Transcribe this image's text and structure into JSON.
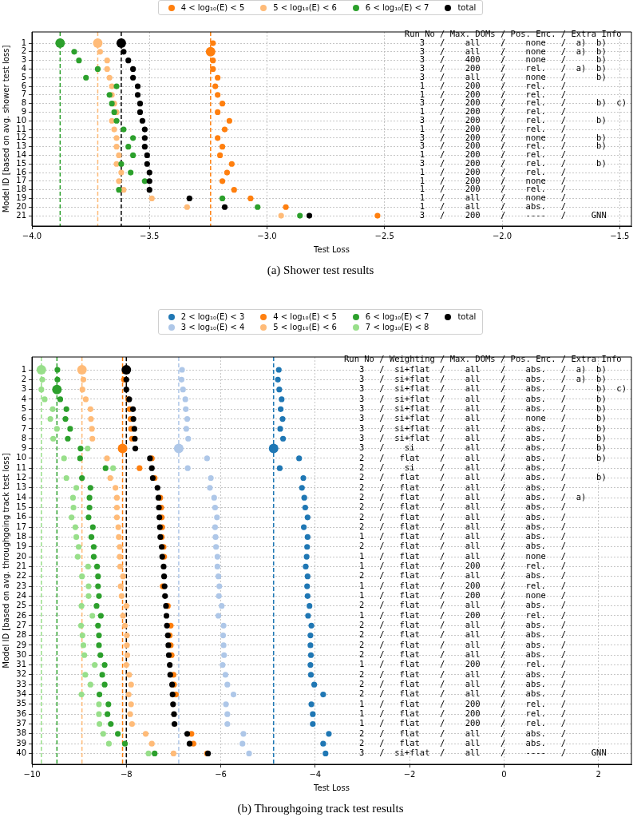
{
  "chart_data": [
    {
      "type": "bubble",
      "title": "(a) Shower test results",
      "xlabel": "Test Loss",
      "ylabel": "Model ID [based on avg. shower test loss]",
      "series": [
        {
          "name": "4 < log₁₀(E) < 5",
          "color": "#ff7f0e",
          "sizes": [
            0.36,
            1,
            0.36,
            0.36,
            0.36,
            0.36,
            0.36,
            0.36,
            0.36,
            0.36,
            0.36,
            0.36,
            0.36,
            0.36,
            0.36,
            0.36,
            0.36,
            0.36,
            0.36,
            0.36,
            0.36
          ],
          "x": [
            -3.23,
            -3.24,
            -3.23,
            -3.23,
            -3.21,
            -3.22,
            -3.21,
            -3.19,
            -3.21,
            -3.16,
            -3.18,
            -3.21,
            -3.19,
            -3.2,
            -3.15,
            -3.17,
            -3.19,
            -3.14,
            -3.07,
            -2.92,
            -2.53
          ],
          "values": [
            1,
            2,
            3,
            4,
            5,
            6,
            7,
            8,
            9,
            10,
            11,
            12,
            13,
            14,
            15,
            16,
            17,
            18,
            19,
            20,
            21
          ]
        },
        {
          "name": "5 < log₁₀(E) < 6",
          "color": "#ffbb78",
          "sizes": [
            1,
            0.36,
            0.36,
            0.36,
            0.36,
            0.36,
            0.36,
            0.36,
            0.36,
            0.36,
            0.36,
            0.36,
            0.36,
            0.36,
            0.36,
            0.36,
            0.36,
            0.36,
            0.36,
            0.36,
            0.36
          ],
          "x": [
            -3.72,
            -3.71,
            -3.68,
            -3.68,
            -3.67,
            -3.66,
            -3.66,
            -3.65,
            -3.64,
            -3.66,
            -3.65,
            -3.64,
            -3.64,
            -3.63,
            -3.64,
            -3.62,
            -3.63,
            -3.61,
            -3.49,
            -3.34,
            -2.94
          ],
          "values": [
            1,
            2,
            3,
            4,
            5,
            6,
            7,
            8,
            9,
            10,
            11,
            12,
            13,
            14,
            15,
            16,
            17,
            18,
            19,
            20,
            21
          ]
        },
        {
          "name": "6 < log₁₀(E) < 7",
          "color": "#2ca02c",
          "sizes": [
            1,
            0.36,
            0.36,
            0.36,
            0.36,
            0.36,
            0.36,
            0.36,
            0.36,
            0.36,
            0.36,
            0.36,
            0.36,
            0.36,
            0.36,
            0.36,
            0.36,
            0.36,
            0.36,
            0.36,
            0.36
          ],
          "x": [
            -3.88,
            -3.82,
            -3.8,
            -3.72,
            -3.77,
            -3.64,
            -3.67,
            -3.66,
            -3.65,
            -3.64,
            -3.61,
            -3.57,
            -3.59,
            -3.57,
            -3.62,
            -3.58,
            -3.52,
            -3.63,
            -3.19,
            -3.04,
            -2.86
          ],
          "values": [
            1,
            2,
            3,
            4,
            5,
            6,
            7,
            8,
            9,
            10,
            11,
            12,
            13,
            14,
            15,
            16,
            17,
            18,
            19,
            20,
            21
          ]
        },
        {
          "name": "total",
          "color": "#000000",
          "sizes": [
            1,
            0.36,
            0.36,
            0.36,
            0.36,
            0.36,
            0.36,
            0.36,
            0.36,
            0.36,
            0.36,
            0.36,
            0.36,
            0.36,
            0.36,
            0.36,
            0.36,
            0.36,
            0.36,
            0.36,
            0.36
          ],
          "x": [
            -3.62,
            -3.61,
            -3.59,
            -3.57,
            -3.57,
            -3.55,
            -3.55,
            -3.54,
            -3.54,
            -3.53,
            -3.52,
            -3.52,
            -3.52,
            -3.51,
            -3.51,
            -3.5,
            -3.5,
            -3.5,
            -3.33,
            -3.18,
            -2.82
          ],
          "values": [
            1,
            2,
            3,
            4,
            5,
            6,
            7,
            8,
            9,
            10,
            11,
            12,
            13,
            14,
            15,
            16,
            17,
            18,
            19,
            20,
            21
          ]
        }
      ],
      "xlim": [
        -4.0,
        -1.45
      ],
      "xticks": [
        {
          "value": -4.0,
          "label": "−4.0"
        },
        {
          "value": -3.5,
          "label": "−3.5"
        },
        {
          "value": -3.0,
          "label": "−3.0"
        },
        {
          "value": -2.5,
          "label": "−2.5"
        },
        {
          "value": -2.0,
          "label": "−2.0"
        },
        {
          "value": -1.5,
          "label": "−1.5"
        }
      ],
      "ylim": [
        22.2,
        -0.3
      ],
      "yticks": [
        1,
        2,
        3,
        4,
        5,
        6,
        7,
        8,
        9,
        10,
        11,
        12,
        13,
        14,
        15,
        16,
        17,
        18,
        19,
        20,
        21
      ],
      "grid": true,
      "legend": "top",
      "marker": "circle",
      "ref_lines": [
        {
          "axis": "x",
          "value": -3.24,
          "color": "#ff7f0e",
          "line_style": "dashed"
        },
        {
          "axis": "x",
          "value": -3.72,
          "color": "#ffbb78",
          "line_style": "dashed"
        },
        {
          "axis": "x",
          "value": -3.88,
          "color": "#2ca02c",
          "line_style": "dashed"
        },
        {
          "axis": "x",
          "value": -3.62,
          "color": "#000000",
          "line_style": "dashed"
        }
      ],
      "annotations": [
        "Run No / Max. DOMs / Pos. Enc. / Extra Info",
        "   3   /    all    /    none   /  a)  b)",
        "   3   /    all    /    none   /  a)  b)",
        "   3   /    400    /    none   /      b)",
        "   3   /    200    /    rel.   /  a)  b)",
        "   3   /    all    /    none   /      b)",
        "   1   /    200    /    rel.   /",
        "   1   /    200    /    rel.   /",
        "   3   /    200    /    rel.   /      b)  c)",
        "   1   /    200    /    rel.   /",
        "   3   /    200    /    rel.   /      b)",
        "   1   /    200    /    rel.   /",
        "   3   /    200    /    none   /      b)",
        "   3   /    200    /    rel.   /      b)",
        "   1   /    200    /    rel.   /",
        "   3   /    200    /    rel.   /      b)",
        "   1   /    200    /    rel.   /",
        "   1   /    200    /    none   /",
        "   1   /    200    /    rel.   /",
        "   1   /    all    /    none   /",
        "   1   /    all    /    abs.   /",
        "   3   /    200    /    ----   /     GNN"
      ]
    },
    {
      "type": "bubble",
      "title": "(b) Throughgoing track test results",
      "xlabel": "Test Loss",
      "ylabel": "Model ID [based on avg. throughgoing track test loss]",
      "series": [
        {
          "name": "2 < log₁₀(E) < 3",
          "color": "#1f77b4",
          "sizes": [
            0.36,
            0.36,
            0.36,
            0.36,
            0.36,
            0.36,
            0.36,
            0.36,
            1,
            0.36,
            0.36,
            0.36,
            0.36,
            0.36,
            0.36,
            0.36,
            0.36,
            0.36,
            0.36,
            0.36,
            0.36,
            0.36,
            0.36,
            0.36,
            0.36,
            0.36,
            0.36,
            0.36,
            0.36,
            0.36,
            0.36,
            0.36,
            0.36,
            0.36,
            0.36,
            0.36,
            0.36,
            0.36,
            0.36,
            0.36
          ],
          "x": [
            -4.77,
            -4.79,
            -4.76,
            -4.71,
            -4.73,
            -4.69,
            -4.74,
            -4.68,
            -4.88,
            -4.34,
            -4.75,
            -4.25,
            -4.28,
            -4.23,
            -4.21,
            -4.16,
            -4.24,
            -4.16,
            -4.17,
            -4.18,
            -4.2,
            -4.16,
            -4.17,
            -4.16,
            -4.12,
            -4.15,
            -4.08,
            -4.1,
            -4.1,
            -4.09,
            -4.1,
            -4.09,
            -4.02,
            -3.83,
            -4.08,
            -4.05,
            -4.05,
            -3.71,
            -3.83,
            -3.78
          ],
          "values": [
            1,
            2,
            3,
            4,
            5,
            6,
            7,
            8,
            9,
            10,
            11,
            12,
            13,
            14,
            15,
            16,
            17,
            18,
            19,
            20,
            21,
            22,
            23,
            24,
            25,
            26,
            27,
            28,
            29,
            30,
            31,
            32,
            33,
            34,
            35,
            36,
            37,
            38,
            39,
            40
          ]
        },
        {
          "name": "3 < log₁₀(E) < 4",
          "color": "#aec7e8",
          "sizes": [
            0.36,
            0.36,
            0.36,
            0.36,
            0.36,
            0.36,
            0.36,
            0.36,
            1,
            0.36,
            0.36,
            0.36,
            0.36,
            0.36,
            0.36,
            0.36,
            0.36,
            0.36,
            0.36,
            0.36,
            0.36,
            0.36,
            0.36,
            0.36,
            0.36,
            0.36,
            0.36,
            0.36,
            0.36,
            0.36,
            0.36,
            0.36,
            0.36,
            0.36,
            0.36,
            0.36,
            0.36,
            0.36,
            0.36,
            0.36
          ],
          "x": [
            -6.82,
            -6.83,
            -6.8,
            -6.75,
            -6.74,
            -6.71,
            -6.73,
            -6.69,
            -6.89,
            -6.29,
            -6.7,
            -6.21,
            -6.23,
            -6.14,
            -6.12,
            -6.08,
            -6.12,
            -6.11,
            -6.1,
            -6.07,
            -6.07,
            -6.05,
            -6.03,
            -6.04,
            -5.98,
            -6.05,
            -5.94,
            -5.95,
            -5.94,
            -5.93,
            -5.96,
            -5.9,
            -5.86,
            -5.73,
            -5.89,
            -5.86,
            -5.86,
            -5.52,
            -5.54,
            -5.4
          ],
          "values": [
            1,
            2,
            3,
            4,
            5,
            6,
            7,
            8,
            9,
            10,
            11,
            12,
            13,
            14,
            15,
            16,
            17,
            18,
            19,
            20,
            21,
            22,
            23,
            24,
            25,
            26,
            27,
            28,
            29,
            30,
            31,
            32,
            33,
            34,
            35,
            36,
            37,
            38,
            39,
            40
          ]
        },
        {
          "name": "4 < log₁₀(E) < 5",
          "color": "#ff7f0e",
          "sizes": [
            0.36,
            0.36,
            0.36,
            0.36,
            0.36,
            0.36,
            1,
            0.36,
            0.36,
            0.36,
            0.36,
            0.36,
            0.36,
            0.36,
            0.36,
            0.36,
            0.36,
            0.36,
            0.36,
            0.36,
            0.36,
            0.36,
            0.36,
            0.36,
            0.36,
            0.36,
            0.36,
            0.36,
            0.36
          ],
          "x": [
            -8.05,
            -7.96,
            -7.93,
            -7.91,
            -7.9,
            -7.88,
            -8.08,
            -7.46,
            -7.72,
            -7.4,
            -7.28,
            -7.26,
            -7.25,
            -7.24,
            -7.25,
            -7.21,
            -7.2,
            -7.23,
            -7.12,
            -7.06,
            -7.08,
            -7.06,
            -7.04,
            -7.0,
            -6.99,
            -6.95,
            -6.62,
            -6.58,
            -6.29
          ],
          "values": [
            2,
            4,
            5,
            6,
            7,
            8,
            9,
            10,
            11,
            12,
            14,
            15,
            16,
            17,
            18,
            19,
            20,
            23,
            25,
            27,
            28,
            29,
            30,
            32,
            33,
            34,
            38,
            39,
            40
          ]
        },
        {
          "name": "5 < log₁₀(E) < 6",
          "color": "#ffbb78",
          "sizes": [
            1,
            0.36,
            0.36,
            0.36,
            0.36,
            0.36,
            0.36,
            0.36,
            0.36,
            0.36,
            0.36,
            0.36,
            0.36,
            0.36,
            0.36,
            0.36,
            0.36,
            0.36,
            0.36,
            0.36,
            0.36,
            0.36,
            0.36,
            0.36,
            0.36,
            0.36,
            0.36,
            0.36,
            0.36,
            0.36,
            0.36,
            0.36,
            0.36,
            0.36,
            0.36,
            0.36,
            0.36,
            0.36
          ],
          "x": [
            -8.94,
            -8.91,
            -8.93,
            -8.86,
            -8.76,
            -8.75,
            -8.73,
            -8.72,
            -8.41,
            -8.34,
            -8.23,
            -8.2,
            -8.2,
            -8.2,
            -8.17,
            -8.16,
            -8.14,
            -8.14,
            -8.13,
            -8.07,
            -8.12,
            -8.1,
            -8.0,
            -8.07,
            -8.03,
            -7.99,
            -7.99,
            -7.98,
            -8.0,
            -7.94,
            -7.9,
            -7.95,
            -7.9,
            -7.92,
            -7.88,
            -7.59,
            -7.46,
            -7.0
          ],
          "values": [
            1,
            2,
            3,
            4,
            5,
            6,
            7,
            8,
            10,
            12,
            13,
            14,
            15,
            16,
            17,
            18,
            19,
            20,
            21,
            22,
            23,
            24,
            25,
            26,
            27,
            28,
            29,
            30,
            31,
            32,
            33,
            34,
            35,
            36,
            37,
            38,
            39,
            40
          ]
        },
        {
          "name": "6 < log₁₀(E) < 7",
          "color": "#2ca02c",
          "sizes": [
            0.36,
            0.36,
            1,
            0.36,
            0.36,
            0.36,
            0.36,
            0.36,
            0.36,
            0.36,
            0.36,
            0.36,
            0.36,
            0.36,
            0.36,
            0.36,
            0.36,
            0.36,
            0.36,
            0.36,
            0.36,
            0.36,
            0.36,
            0.36,
            0.36,
            0.36,
            0.36,
            0.36,
            0.36,
            0.36,
            0.36,
            0.36,
            0.36,
            0.36,
            0.36,
            0.36,
            0.36,
            0.36,
            0.36,
            0.36
          ],
          "x": [
            -9.46,
            -9.46,
            -9.47,
            -9.4,
            -9.27,
            -9.29,
            -9.19,
            -9.24,
            -8.97,
            -8.98,
            -8.44,
            -8.94,
            -8.76,
            -8.78,
            -8.78,
            -8.8,
            -8.71,
            -8.74,
            -8.69,
            -8.69,
            -8.62,
            -8.6,
            -8.6,
            -8.58,
            -8.63,
            -8.54,
            -8.6,
            -8.58,
            -8.58,
            -8.55,
            -8.46,
            -8.51,
            -8.46,
            -8.57,
            -8.38,
            -8.4,
            -8.33,
            -8.18,
            -8.03,
            -7.4
          ],
          "values": [
            1,
            2,
            3,
            4,
            5,
            6,
            7,
            8,
            9,
            10,
            11,
            12,
            13,
            14,
            15,
            16,
            17,
            18,
            19,
            20,
            21,
            22,
            23,
            24,
            25,
            26,
            27,
            28,
            29,
            30,
            31,
            32,
            33,
            34,
            35,
            36,
            37,
            38,
            39,
            40
          ]
        },
        {
          "name": "7 < log₁₀(E) < 8",
          "color": "#98df8a",
          "sizes": [
            1,
            0.36,
            0.36,
            0.36,
            0.36,
            0.36,
            0.36,
            0.36,
            0.36,
            0.36,
            0.36,
            0.36,
            0.36,
            0.36,
            0.36,
            0.36,
            0.36,
            0.36,
            0.36,
            0.36,
            0.36,
            0.36,
            0.36,
            0.36,
            0.36,
            0.36,
            0.36,
            0.36,
            0.36,
            0.36,
            0.36,
            0.36,
            0.36,
            0.36,
            0.36,
            0.36,
            0.36,
            0.36,
            0.36,
            0.36
          ],
          "x": [
            -9.8,
            -9.78,
            -9.8,
            -9.73,
            -9.56,
            -9.61,
            -9.47,
            -9.55,
            -8.82,
            -9.32,
            -8.28,
            -9.27,
            -9.06,
            -9.13,
            -9.12,
            -9.16,
            -9.08,
            -9.06,
            -9.01,
            -9.03,
            -8.81,
            -8.94,
            -8.8,
            -8.8,
            -8.95,
            -8.72,
            -8.96,
            -8.93,
            -8.91,
            -8.89,
            -8.67,
            -8.87,
            -8.76,
            -8.95,
            -8.58,
            -8.58,
            -8.57,
            -8.49,
            -8.37,
            -7.53
          ],
          "values": [
            1,
            2,
            3,
            4,
            5,
            6,
            7,
            8,
            9,
            10,
            11,
            12,
            13,
            14,
            15,
            16,
            17,
            18,
            19,
            20,
            21,
            22,
            23,
            24,
            25,
            26,
            27,
            28,
            29,
            30,
            31,
            32,
            33,
            34,
            35,
            36,
            37,
            38,
            39,
            40
          ]
        },
        {
          "name": "total",
          "color": "#000000",
          "sizes": [
            1,
            0.36,
            0.36,
            0.36,
            0.36,
            0.36,
            0.36,
            0.36,
            0.36,
            0.36,
            0.36,
            0.36,
            0.36,
            0.36,
            0.36,
            0.36,
            0.36,
            0.36,
            0.36,
            0.36,
            0.36,
            0.36,
            0.36,
            0.36,
            0.36,
            0.36,
            0.36,
            0.36,
            0.36,
            0.36,
            0.36,
            0.36,
            0.36,
            0.36,
            0.36,
            0.36,
            0.36,
            0.36,
            0.36,
            0.36
          ],
          "x": [
            -8.0,
            -8.0,
            -8.0,
            -7.94,
            -7.86,
            -7.85,
            -7.83,
            -7.82,
            -7.81,
            -7.5,
            -7.46,
            -7.44,
            -7.34,
            -7.32,
            -7.31,
            -7.3,
            -7.29,
            -7.28,
            -7.25,
            -7.24,
            -7.21,
            -7.2,
            -7.19,
            -7.18,
            -7.16,
            -7.15,
            -7.14,
            -7.12,
            -7.11,
            -7.1,
            -7.08,
            -7.07,
            -7.03,
            -7.02,
            -7.01,
            -6.99,
            -6.98,
            -6.71,
            -6.66,
            -6.27
          ],
          "values": [
            1,
            2,
            3,
            4,
            5,
            6,
            7,
            8,
            9,
            10,
            11,
            12,
            13,
            14,
            15,
            16,
            17,
            18,
            19,
            20,
            21,
            22,
            23,
            24,
            25,
            26,
            27,
            28,
            29,
            30,
            31,
            32,
            33,
            34,
            35,
            36,
            37,
            38,
            39,
            40
          ]
        }
      ],
      "xlim": [
        -10,
        2.7
      ],
      "xticks": [
        {
          "value": -10,
          "label": "−10"
        },
        {
          "value": -8,
          "label": "−8"
        },
        {
          "value": -6,
          "label": "−6"
        },
        {
          "value": -4,
          "label": "−4"
        },
        {
          "value": -2,
          "label": "−2"
        },
        {
          "value": 0,
          "label": "0"
        },
        {
          "value": 2,
          "label": "2"
        }
      ],
      "ylim": [
        41.1,
        -0.3
      ],
      "yticks": [
        1,
        2,
        3,
        4,
        5,
        6,
        7,
        8,
        9,
        10,
        11,
        12,
        13,
        14,
        15,
        16,
        17,
        18,
        19,
        20,
        21,
        22,
        23,
        24,
        25,
        26,
        27,
        28,
        29,
        30,
        31,
        32,
        33,
        34,
        35,
        36,
        37,
        38,
        39,
        40
      ],
      "grid": true,
      "legend": "top",
      "marker": "circle",
      "ref_lines": [
        {
          "axis": "x",
          "value": -4.88,
          "color": "#1f77b4",
          "line_style": "dashed"
        },
        {
          "axis": "x",
          "value": -6.89,
          "color": "#aec7e8",
          "line_style": "dashed"
        },
        {
          "axis": "x",
          "value": -8.08,
          "color": "#ff7f0e",
          "line_style": "dashed"
        },
        {
          "axis": "x",
          "value": -8.94,
          "color": "#ffbb78",
          "line_style": "dashed"
        },
        {
          "axis": "x",
          "value": -9.47,
          "color": "#2ca02c",
          "line_style": "dashed"
        },
        {
          "axis": "x",
          "value": -9.8,
          "color": "#98df8a",
          "line_style": "dashed"
        },
        {
          "axis": "x",
          "value": -8.0,
          "color": "#000000",
          "line_style": "dashed"
        }
      ],
      "annotations": [
        "Run No / Weighting / Max. DOMs / Pos. Enc. / Extra Info",
        "   3   /  si+flat  /    all    /    abs.   /  a)  b)",
        "   3   /  si+flat  /    all    /    abs.   /  a)  b)",
        "   3   /  si+flat  /    all    /    abs.   /      b)  c)",
        "   3   /  si+flat  /    all    /    abs.   /      b)",
        "   3   /  si+flat  /    all    /    abs.   /      b)",
        "   3   /  si+flat  /    all    /    none   /      b)",
        "   3   /  si+flat  /    all    /    abs.   /      b)",
        "   3   /  si+flat  /    all    /    abs.   /      b)",
        "   3   /    si     /    all    /    abs.   /      b)",
        "   2   /   flat    /    all    /    abs.   /      b)",
        "   2   /    si     /    all    /    abs.   /",
        "   2   /   flat    /    all    /    abs.   /      b)",
        "   2   /   flat    /    all    /    abs.   /",
        "   2   /   flat    /    all    /    abs.   /  a)",
        "   2   /   flat    /    all    /    abs.   /",
        "   2   /   flat    /    all    /    abs.   /",
        "   2   /   flat    /    all    /    abs.   /",
        "   1   /   flat    /    all    /    abs.   /",
        "   2   /   flat    /    all    /    abs.   /",
        "   1   /   flat    /    all    /    none   /",
        "   1   /   flat    /    200    /    rel.   /",
        "   2   /   flat    /    all    /    abs.   /",
        "   1   /   flat    /    200    /    rel.   /",
        "   1   /   flat    /    200    /    none   /",
        "   2   /   flat    /    all    /    abs.   /",
        "   1   /   flat    /    200    /    rel.   /",
        "   2   /   flat    /    all    /    abs.   /",
        "   2   /   flat    /    all    /    abs.   /",
        "   2   /   flat    /    all    /    abs.   /",
        "   2   /   flat    /    all    /    abs.   /",
        "   1   /   flat    /    200    /    rel.   /",
        "   2   /   flat    /    all    /    abs.   /",
        "   2   /   flat    /    all    /    abs.   /",
        "   2   /   flat    /    all    /    abs.   /",
        "   1   /   flat    /    200    /    rel.   /",
        "   1   /   flat    /    200    /    rel.   /",
        "   1   /   flat    /    200    /    rel.   /",
        "   2   /   flat    /    all    /    abs.   /",
        "   2   /   flat    /    all    /    abs.   /",
        "   3   /  si+flat  /    all    /    ----   /     GNN"
      ]
    }
  ]
}
